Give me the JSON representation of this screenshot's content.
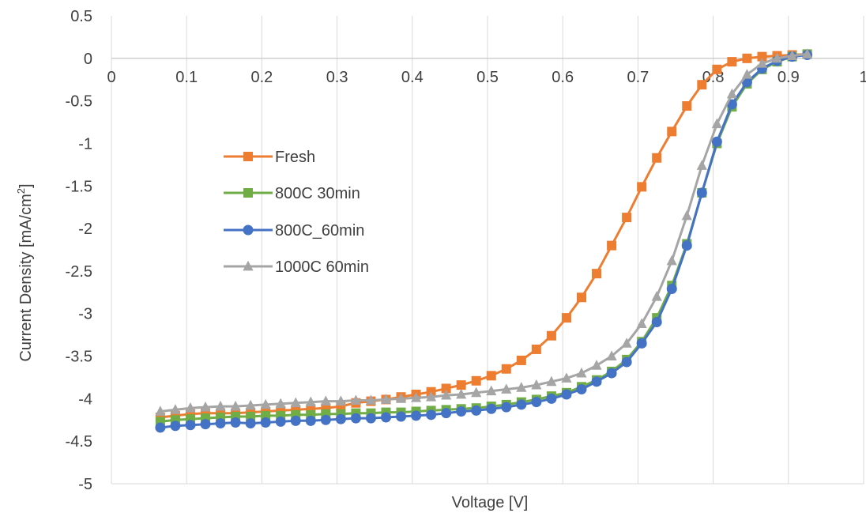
{
  "chart_data": {
    "type": "line",
    "xlabel": "Voltage [V]",
    "ylabel_main": "Current Density [mA/cm",
    "ylabel_sup": "2",
    "ylabel_end": "]",
    "xlim": [
      0,
      1
    ],
    "ylim": [
      -5,
      0.5
    ],
    "x_ticks": [
      "0",
      "0.1",
      "0.2",
      "0.3",
      "0.4",
      "0.5",
      "0.6",
      "0.7",
      "0.8",
      "0.9",
      "1"
    ],
    "y_ticks": [
      "0.5",
      "0",
      "-0.5",
      "-1",
      "-1.5",
      "-2",
      "-2.5",
      "-3",
      "-3.5",
      "-4",
      "-4.5",
      "-5"
    ],
    "grid": "vertical",
    "legend_position": "left-center",
    "series": [
      {
        "name": "Fresh",
        "color": "#ED7D31",
        "marker": "square",
        "x": [
          0.065,
          0.085,
          0.105,
          0.125,
          0.145,
          0.165,
          0.185,
          0.205,
          0.225,
          0.245,
          0.265,
          0.285,
          0.305,
          0.325,
          0.345,
          0.365,
          0.385,
          0.405,
          0.425,
          0.445,
          0.465,
          0.485,
          0.505,
          0.525,
          0.545,
          0.565,
          0.585,
          0.605,
          0.625,
          0.645,
          0.665,
          0.685,
          0.705,
          0.725,
          0.745,
          0.765,
          0.785,
          0.805,
          0.825,
          0.845,
          0.865,
          0.885,
          0.905,
          0.925
        ],
        "y": [
          -4.22,
          -4.2,
          -4.18,
          -4.17,
          -4.17,
          -4.17,
          -4.16,
          -4.15,
          -4.14,
          -4.13,
          -4.12,
          -4.11,
          -4.09,
          -4.05,
          -4.03,
          -4.01,
          -3.98,
          -3.95,
          -3.92,
          -3.88,
          -3.84,
          -3.79,
          -3.73,
          -3.65,
          -3.55,
          -3.42,
          -3.26,
          -3.05,
          -2.81,
          -2.53,
          -2.2,
          -1.87,
          -1.51,
          -1.17,
          -0.86,
          -0.56,
          -0.31,
          -0.13,
          -0.04,
          0.0,
          0.02,
          0.03,
          0.04,
          0.05
        ]
      },
      {
        "name": "800C 30min",
        "color": "#70AD47",
        "marker": "square",
        "x": [
          0.065,
          0.085,
          0.105,
          0.125,
          0.145,
          0.165,
          0.185,
          0.205,
          0.225,
          0.245,
          0.265,
          0.285,
          0.305,
          0.325,
          0.345,
          0.365,
          0.385,
          0.405,
          0.425,
          0.445,
          0.465,
          0.485,
          0.505,
          0.525,
          0.545,
          0.565,
          0.585,
          0.605,
          0.625,
          0.645,
          0.665,
          0.685,
          0.705,
          0.725,
          0.745,
          0.765,
          0.785,
          0.805,
          0.825,
          0.845,
          0.865,
          0.885,
          0.905,
          0.925
        ],
        "y": [
          -4.27,
          -4.25,
          -4.24,
          -4.23,
          -4.22,
          -4.21,
          -4.21,
          -4.2,
          -4.2,
          -4.19,
          -4.19,
          -4.18,
          -4.18,
          -4.17,
          -4.17,
          -4.16,
          -4.16,
          -4.15,
          -4.14,
          -4.13,
          -4.12,
          -4.11,
          -4.09,
          -4.07,
          -4.04,
          -4.01,
          -3.97,
          -3.93,
          -3.86,
          -3.78,
          -3.68,
          -3.54,
          -3.33,
          -3.05,
          -2.67,
          -2.18,
          -1.58,
          -1.0,
          -0.57,
          -0.3,
          -0.13,
          -0.04,
          0.02,
          0.05
        ]
      },
      {
        "name": "800C_60min",
        "color": "#4472C4",
        "marker": "circle",
        "x": [
          0.065,
          0.085,
          0.105,
          0.125,
          0.145,
          0.165,
          0.185,
          0.205,
          0.225,
          0.245,
          0.265,
          0.285,
          0.305,
          0.325,
          0.345,
          0.365,
          0.385,
          0.405,
          0.425,
          0.445,
          0.465,
          0.485,
          0.505,
          0.525,
          0.545,
          0.565,
          0.585,
          0.605,
          0.625,
          0.645,
          0.665,
          0.685,
          0.705,
          0.725,
          0.745,
          0.765,
          0.785,
          0.805,
          0.825,
          0.845,
          0.865,
          0.885,
          0.905,
          0.925
        ],
        "y": [
          -4.34,
          -4.32,
          -4.31,
          -4.3,
          -4.29,
          -4.28,
          -4.29,
          -4.28,
          -4.27,
          -4.26,
          -4.26,
          -4.25,
          -4.24,
          -4.23,
          -4.23,
          -4.22,
          -4.21,
          -4.2,
          -4.19,
          -4.17,
          -4.15,
          -4.14,
          -4.12,
          -4.1,
          -4.07,
          -4.04,
          -4.0,
          -3.95,
          -3.89,
          -3.8,
          -3.7,
          -3.57,
          -3.35,
          -3.1,
          -2.71,
          -2.2,
          -1.58,
          -0.98,
          -0.54,
          -0.28,
          -0.12,
          -0.03,
          0.02,
          0.04
        ]
      },
      {
        "name": "1000C 60min",
        "color": "#A5A5A5",
        "marker": "triangle",
        "x": [
          0.065,
          0.085,
          0.105,
          0.125,
          0.145,
          0.165,
          0.185,
          0.205,
          0.225,
          0.245,
          0.265,
          0.285,
          0.305,
          0.325,
          0.345,
          0.365,
          0.385,
          0.405,
          0.425,
          0.445,
          0.465,
          0.485,
          0.505,
          0.525,
          0.545,
          0.565,
          0.585,
          0.605,
          0.625,
          0.645,
          0.665,
          0.685,
          0.705,
          0.725,
          0.745,
          0.765,
          0.785,
          0.805,
          0.825,
          0.845,
          0.865,
          0.885,
          0.905,
          0.925
        ],
        "y": [
          -4.15,
          -4.13,
          -4.11,
          -4.1,
          -4.09,
          -4.09,
          -4.08,
          -4.07,
          -4.06,
          -4.05,
          -4.04,
          -4.03,
          -4.03,
          -4.02,
          -4.02,
          -4.01,
          -4.0,
          -3.99,
          -3.98,
          -3.96,
          -3.95,
          -3.93,
          -3.91,
          -3.89,
          -3.87,
          -3.84,
          -3.8,
          -3.76,
          -3.7,
          -3.61,
          -3.5,
          -3.35,
          -3.12,
          -2.8,
          -2.38,
          -1.85,
          -1.26,
          -0.77,
          -0.42,
          -0.19,
          -0.06,
          0.0,
          0.03,
          0.05
        ]
      }
    ]
  }
}
